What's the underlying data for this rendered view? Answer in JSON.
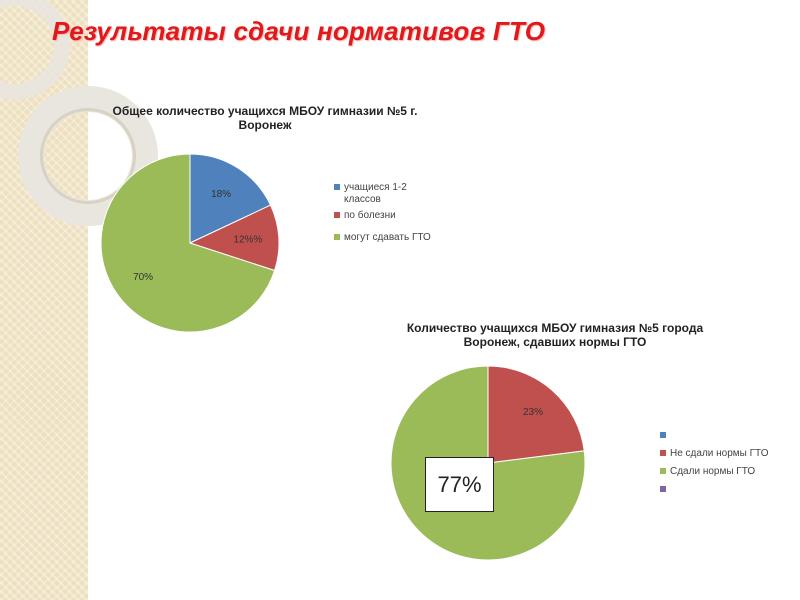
{
  "slide": {
    "title": "Результаты сдачи нормативов ГТО"
  },
  "callout": {
    "text": "77%"
  },
  "chart_data": [
    {
      "type": "pie",
      "title": "Общее количество учащихся МБОУ гимназии №5 г. Воронеж",
      "categories": [
        "учащиеся 1-2 классов",
        "по болезни",
        "могут сдавать ГТО"
      ],
      "values": [
        18,
        12,
        70
      ],
      "labels": [
        "18%",
        "12%%",
        "70%"
      ],
      "colors": [
        "#4f81bd",
        "#c0504d",
        "#9bbb59"
      ],
      "legend_position": "right"
    },
    {
      "type": "pie",
      "title": "Количество учащихся МБОУ гимназия №5 города Воронеж, сдавших нормы ГТО",
      "categories": [
        "",
        "Не сдали нормы ГТО",
        "Сдали нормы ГТО",
        ""
      ],
      "values": [
        0,
        23,
        77,
        0
      ],
      "labels": [
        "",
        "23%",
        "",
        ""
      ],
      "colors": [
        "#4f81bd",
        "#c0504d",
        "#9bbb59",
        "#8064a2"
      ],
      "legend_position": "right"
    }
  ]
}
